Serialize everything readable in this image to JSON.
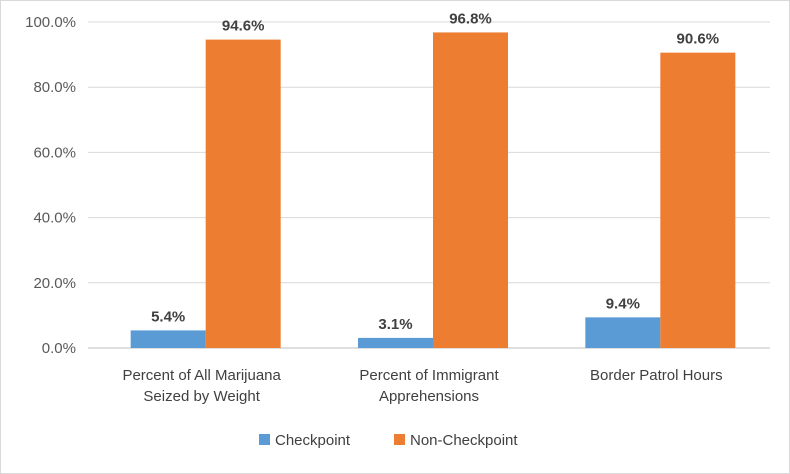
{
  "chart_data": {
    "type": "bar",
    "categories": [
      [
        "Percent of All Marijuana",
        "Seized by Weight"
      ],
      [
        "Percent of Immigrant",
        "Apprehensions"
      ],
      [
        "Border Patrol Hours"
      ]
    ],
    "series": [
      {
        "name": "Checkpoint",
        "values": [
          5.4,
          3.1,
          9.4
        ],
        "labels": [
          "5.4%",
          "3.1%",
          "9.4%"
        ],
        "color": "#5b9bd5"
      },
      {
        "name": "Non-Checkpoint",
        "values": [
          94.6,
          96.8,
          90.6
        ],
        "labels": [
          "94.6%",
          "96.8%",
          "90.6%"
        ],
        "color": "#ed7d31"
      }
    ],
    "yticks": [
      "0.0%",
      "20.0%",
      "40.0%",
      "60.0%",
      "80.0%",
      "100.0%"
    ],
    "ylim": [
      0,
      100
    ],
    "grid": true,
    "legend": "bottom",
    "title": "",
    "xlabel": "",
    "ylabel": ""
  }
}
